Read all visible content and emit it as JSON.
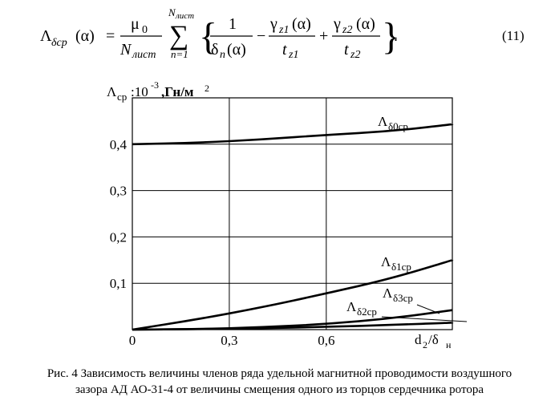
{
  "formula": {
    "lhs_symbol": "Λ",
    "lhs_subscript": "δср",
    "lhs_arg": "(α)",
    "equals": "=",
    "mu": "μ",
    "mu_sub": "0",
    "N": "N",
    "N_sub": "лист",
    "sum_upper_N": "N",
    "sum_upper_sub": "лист",
    "sum_lower": "n=1",
    "one": "1",
    "delta": "δ",
    "delta_sub": "n",
    "delta_arg": "(α)",
    "minus": "−",
    "plus": "+",
    "gamma": "γ",
    "gamma1_sub": "z1",
    "gamma2_sub": "z2",
    "gamma_arg": "(α)",
    "t": "t",
    "t1_sub": "z1",
    "t2_sub": "z2",
    "period": ".",
    "number": "(11)"
  },
  "chart_data": {
    "type": "line",
    "ylabel_main": "Λ",
    "ylabel_sub": "ср",
    "ylabel_unit": ":10",
    "ylabel_exp": "-3",
    "ylabel_tail": ",Гн/м",
    "ylabel_sq": "2",
    "xlabel_num": "d",
    "xlabel_num_sub": "2",
    "xlabel_slash": "/δ",
    "xlabel_den_sub": "н",
    "xlim": [
      0,
      0.99
    ],
    "ylim": [
      0,
      0.5
    ],
    "x_ticks": [
      {
        "value": 0,
        "label": "0"
      },
      {
        "value": 0.3,
        "label": "0,3"
      },
      {
        "value": 0.6,
        "label": "0,6"
      }
    ],
    "y_ticks": [
      {
        "value": 0.1,
        "label": "0,1"
      },
      {
        "value": 0.2,
        "label": "0,2"
      },
      {
        "value": 0.3,
        "label": "0,3"
      },
      {
        "value": 0.4,
        "label": "0,4"
      }
    ],
    "grid": true,
    "series": [
      {
        "name": "Λ",
        "name_sub": "δ0ср",
        "x": [
          0,
          0.2,
          0.4,
          0.6,
          0.8,
          0.99
        ],
        "y": [
          0.4,
          0.403,
          0.41,
          0.42,
          0.428,
          0.443
        ]
      },
      {
        "name": "Λ",
        "name_sub": "δ1ср",
        "x": [
          0,
          0.2,
          0.4,
          0.6,
          0.8,
          0.99
        ],
        "y": [
          0,
          0.022,
          0.048,
          0.078,
          0.11,
          0.15
        ]
      },
      {
        "name": "Λ",
        "name_sub": "δ3ср",
        "x": [
          0,
          0.2,
          0.4,
          0.6,
          0.8,
          0.99
        ],
        "y": [
          0,
          0.001,
          0.005,
          0.012,
          0.024,
          0.042
        ]
      },
      {
        "name": "Λ",
        "name_sub": "δ2ср",
        "x": [
          0,
          0.2,
          0.4,
          0.6,
          0.8,
          0.99
        ],
        "y": [
          0,
          0.001,
          0.003,
          0.006,
          0.01,
          0.015
        ]
      }
    ]
  },
  "caption": {
    "line1": "Рис. 4 Зависимость величины членов ряда удельной магнитной проводимости воздушного",
    "line2": "зазора АД АО-31-4 от величины смещения одного из торцов сердечника ротора"
  }
}
